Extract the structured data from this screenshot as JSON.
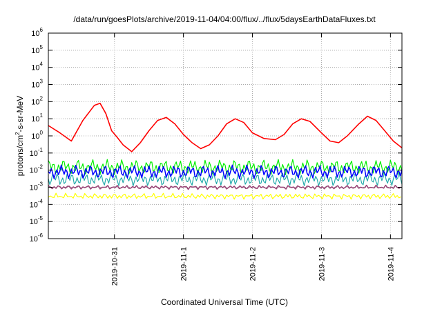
{
  "chart_data": {
    "type": "line",
    "title": "/data/run/goesPlots/archive/2019-11-04/04:00/flux/../flux/5daysEarthDataFluxes.txt",
    "xlabel": "Coordinated Universal Time (UTC)",
    "ylabel_parts": [
      "protons/cm",
      "2",
      "-s-sr-MeV"
    ],
    "y_scale": "log",
    "ylim": [
      1e-06,
      1000000.0
    ],
    "y_tick_exponents": [
      -6,
      -5,
      -4,
      -3,
      -2,
      -1,
      0,
      1,
      2,
      3,
      4,
      5,
      6
    ],
    "xlim": [
      "2019-10-30 01:00",
      "2019-11-04 04:00"
    ],
    "x_ticks": [
      "2019-10-31",
      "2019-11-1",
      "2019-11-2",
      "2019-11-3",
      "2019-11-4"
    ],
    "x_tick_dates": [
      "2019-10-31 00:00",
      "2019-11-01 00:00",
      "2019-11-02 00:00",
      "2019-11-03 00:00",
      "2019-11-04 00:00"
    ],
    "grid": true,
    "series": [
      {
        "color": "#ff0000",
        "x": [
          "2019-10-30 01:00",
          "2019-10-30 05:00",
          "2019-10-30 09:00",
          "2019-10-30 13:00",
          "2019-10-30 17:00",
          "2019-10-30 19:00",
          "2019-10-30 21:00",
          "2019-10-30 23:00",
          "2019-10-31 01:00",
          "2019-10-31 03:00",
          "2019-10-31 06:00",
          "2019-10-31 09:00",
          "2019-10-31 12:00",
          "2019-10-31 15:00",
          "2019-10-31 18:00",
          "2019-10-31 21:00",
          "2019-11-01 00:00",
          "2019-11-01 03:00",
          "2019-11-01 06:00",
          "2019-11-01 09:00",
          "2019-11-01 12:00",
          "2019-11-01 15:00",
          "2019-11-01 18:00",
          "2019-11-01 21:00",
          "2019-11-02 00:00",
          "2019-11-02 04:00",
          "2019-11-02 08:00",
          "2019-11-02 11:00",
          "2019-11-02 14:00",
          "2019-11-02 17:00",
          "2019-11-02 20:00",
          "2019-11-03 00:00",
          "2019-11-03 03:00",
          "2019-11-03 06:00",
          "2019-11-03 09:00",
          "2019-11-03 13:00",
          "2019-11-03 16:00",
          "2019-11-03 19:00",
          "2019-11-03 22:00",
          "2019-11-04 01:00",
          "2019-11-04 04:00"
        ],
        "y": [
          4,
          1.5,
          0.5,
          8,
          60,
          80,
          20,
          2,
          0.8,
          0.3,
          0.12,
          0.4,
          2,
          8,
          12,
          5,
          1.2,
          0.4,
          0.18,
          0.3,
          1,
          5,
          10,
          6,
          1.5,
          0.7,
          0.6,
          1.2,
          5,
          10,
          7,
          1.5,
          0.5,
          0.4,
          1,
          5,
          14,
          8,
          2,
          0.5,
          0.2
        ]
      },
      {
        "color": "#00ee00",
        "x": [
          "2019-10-30 01:00",
          "2019-11-04 04:00"
        ],
        "y": [
          0.015,
          0.015
        ]
      },
      {
        "color": "#22aaaa",
        "x": [
          "2019-10-30 01:00",
          "2019-11-04 04:00"
        ],
        "y": [
          0.003,
          0.003
        ]
      },
      {
        "color": "#0000ff",
        "x": [
          "2019-10-30 01:00",
          "2019-11-04 04:00"
        ],
        "y": [
          0.008,
          0.008
        ]
      },
      {
        "color": "#994477",
        "x": [
          "2019-10-30 01:00",
          "2019-11-04 04:00"
        ],
        "y": [
          0.001,
          0.001
        ]
      },
      {
        "color": "#ffff00",
        "x": [
          "2019-10-30 01:00",
          "2019-11-04 04:00"
        ],
        "y": [
          0.0003,
          0.0003
        ]
      }
    ]
  }
}
